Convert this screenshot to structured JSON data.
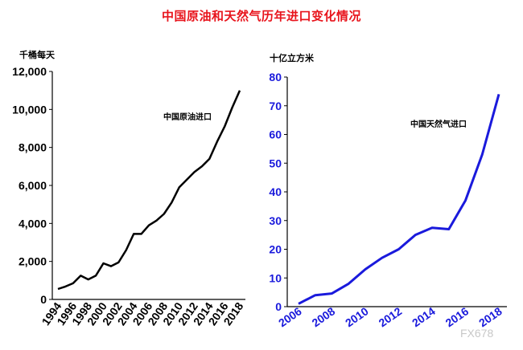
{
  "title": "中国原油和天然气历年进口变化情况",
  "watermark": "FX678",
  "chart_data": [
    {
      "type": "line",
      "unit_label": "千桶每天",
      "annotation": "中国原油进口",
      "color": "#000000",
      "ylim": [
        0,
        12000
      ],
      "yticks": [
        "0",
        "2,000",
        "4,000",
        "6,000",
        "8,000",
        "10,000",
        "12,000"
      ],
      "ytick_values": [
        0,
        2000,
        4000,
        6000,
        8000,
        10000,
        12000
      ],
      "xticks": [
        "1994",
        "1996",
        "1998",
        "2000",
        "2002",
        "2004",
        "2006",
        "2008",
        "2010",
        "2012",
        "2014",
        "2016",
        "2018"
      ],
      "xlim": [
        1994,
        2018
      ],
      "series": [
        {
          "x": [
            1994,
            1995,
            1996,
            1997,
            1998,
            1999,
            2000,
            2001,
            2002,
            2003,
            2004,
            2005,
            2006,
            2007,
            2008,
            2009,
            2010,
            2011,
            2012,
            2013,
            2014,
            2015,
            2016,
            2017,
            2018
          ],
          "values": [
            550,
            680,
            850,
            1250,
            1050,
            1250,
            1900,
            1750,
            1950,
            2600,
            3450,
            3450,
            3900,
            4150,
            4500,
            5100,
            5900,
            6300,
            6700,
            7000,
            7400,
            8300,
            9100,
            10100,
            11000
          ]
        }
      ]
    },
    {
      "type": "line",
      "unit_label": "十亿立方米",
      "annotation": "中国天然气进口",
      "color": "#1a1adc",
      "ylim": [
        0,
        80
      ],
      "yticks": [
        "0",
        "10",
        "20",
        "30",
        "40",
        "50",
        "60",
        "70",
        "80"
      ],
      "ytick_values": [
        0,
        10,
        20,
        30,
        40,
        50,
        60,
        70,
        80
      ],
      "xticks": [
        "2006",
        "2008",
        "2010",
        "2012",
        "2014",
        "2016",
        "2018"
      ],
      "xlim": [
        2006,
        2018
      ],
      "series": [
        {
          "x": [
            2006,
            2007,
            2008,
            2009,
            2010,
            2011,
            2012,
            2013,
            2014,
            2015,
            2016,
            2017,
            2018
          ],
          "values": [
            1,
            4,
            4.6,
            8,
            13,
            17,
            20,
            25,
            27.5,
            27,
            37,
            53,
            74
          ]
        }
      ]
    }
  ]
}
